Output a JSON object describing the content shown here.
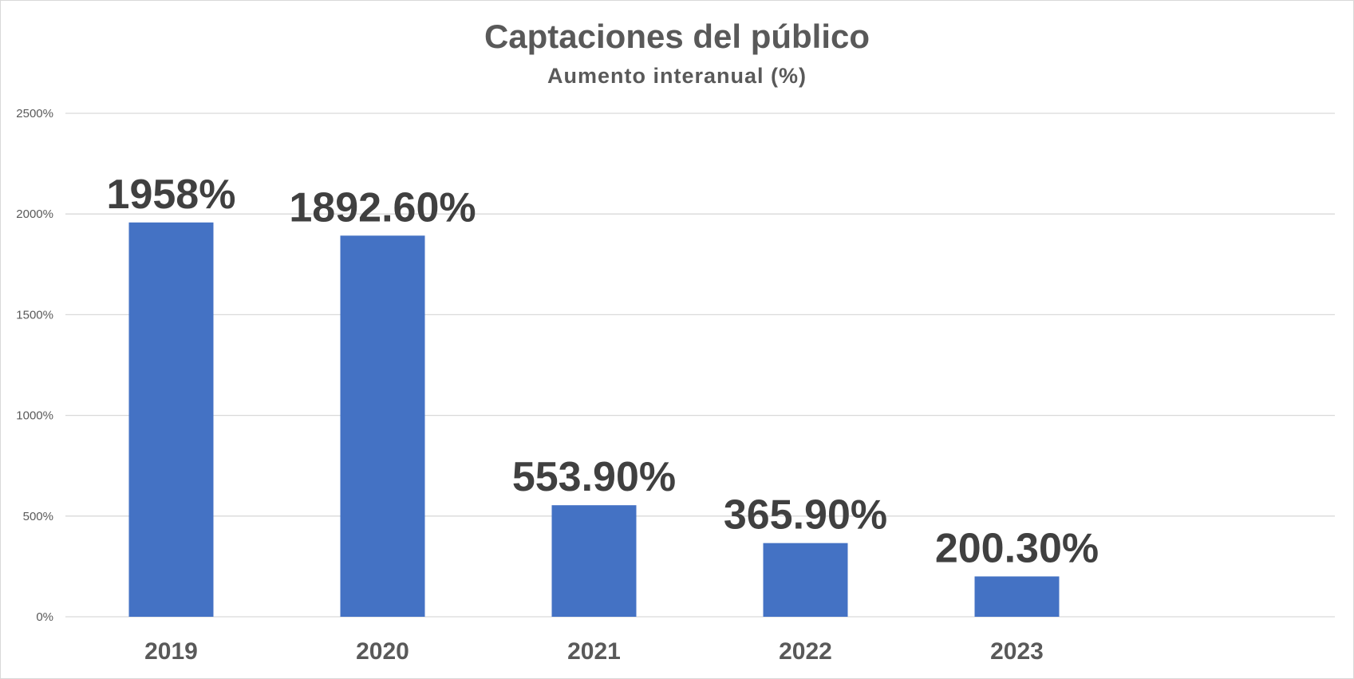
{
  "chart_data": {
    "type": "bar",
    "title": "Captaciones del público",
    "subtitle": "Aumento interanual (%)",
    "xlabel": "",
    "ylabel": "",
    "categories": [
      "2019",
      "2020",
      "2021",
      "2022",
      "2023"
    ],
    "values": [
      1958,
      1892.6,
      553.9,
      365.9,
      200.3
    ],
    "data_labels": [
      "1958%",
      "1892.60%",
      "553.90%",
      "365.90%",
      "200.30%"
    ],
    "ylim": [
      0,
      2500
    ],
    "yticks": [
      0,
      500,
      1000,
      1500,
      2000,
      2500
    ],
    "ytick_labels": [
      "0%",
      "500%",
      "1000%",
      "1500%",
      "2000%",
      "2500%"
    ],
    "grid": true,
    "legend": "none",
    "colors": {
      "bar": "#4472c4",
      "grid": "#d9d9d9",
      "axis_text": "#595959",
      "data_label": "#404040"
    }
  }
}
